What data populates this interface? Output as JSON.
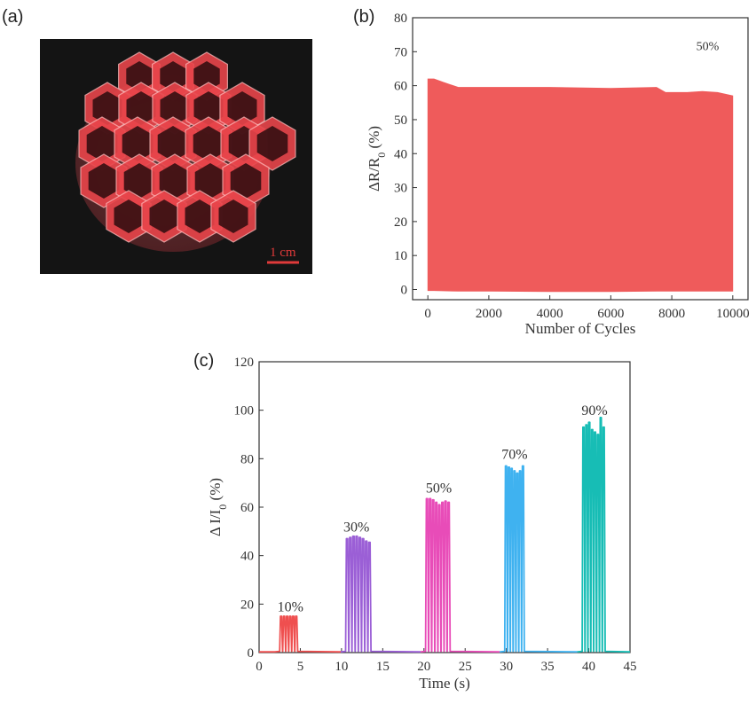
{
  "panels": {
    "a": "(a)",
    "b": "(b)",
    "c": "(c)"
  },
  "photo": {
    "scale_bar_label": "1 cm",
    "subject": "red 3D-printed hexagonal lattice"
  },
  "colors": {
    "b_fill": "#ef5b5b",
    "c_series": [
      "#ef4f4f",
      "#9b5fd6",
      "#e84cb8",
      "#3fb2f0",
      "#17bdb5"
    ],
    "photo_red": "#e8454a"
  },
  "chart_data": [
    {
      "type": "area",
      "xlabel": "Number of Cycles",
      "ylabel": "ΔR/R0 (%)",
      "xlim": [
        -500,
        10500
      ],
      "ylim": [
        -3,
        80
      ],
      "x_ticks": [
        0,
        2000,
        4000,
        6000,
        8000,
        10000
      ],
      "y_ticks": [
        0,
        10,
        20,
        30,
        40,
        50,
        60,
        70,
        80
      ],
      "annotation": "50%",
      "series": [
        {
          "x": [
            0,
            200,
            500,
            1000,
            2000,
            4000,
            6000,
            7500,
            7800,
            8500,
            9000,
            9500,
            10000
          ],
          "upper": [
            62,
            62,
            61,
            59.5,
            59.5,
            59.5,
            59.2,
            59.5,
            58,
            58,
            58.3,
            58,
            57
          ],
          "lower": [
            -0.3,
            -0.3,
            -0.4,
            -0.5,
            -0.5,
            -0.6,
            -0.6,
            -0.5,
            -0.5,
            -0.5,
            -0.5,
            -0.5,
            -0.5
          ]
        }
      ]
    },
    {
      "type": "line",
      "xlabel": "Time (s)",
      "ylabel": "Δ I/I0 (%)",
      "xlim": [
        0,
        45
      ],
      "ylim": [
        0,
        120
      ],
      "x_ticks": [
        0,
        5,
        10,
        15,
        20,
        25,
        30,
        35,
        40,
        45
      ],
      "y_ticks": [
        0,
        20,
        40,
        60,
        80,
        100,
        120
      ],
      "series": [
        {
          "label": "10%",
          "t_start": 2.5,
          "t_end": 4.7,
          "pulses": 6,
          "peaks": [
            15,
            15,
            15,
            15,
            15,
            15
          ],
          "label_at": [
            3.8,
            17
          ]
        },
        {
          "label": "30%",
          "t_start": 10.5,
          "t_end": 13.6,
          "pulses": 8,
          "peaks": [
            47,
            47.5,
            48,
            48,
            47.5,
            47,
            46,
            45.5
          ],
          "label_at": [
            11.8,
            50
          ]
        },
        {
          "label": "50%",
          "t_start": 20.2,
          "t_end": 23.2,
          "pulses": 8,
          "peaks": [
            63.5,
            63.5,
            63,
            62,
            61,
            62,
            62.5,
            62
          ],
          "label_at": [
            21.8,
            66
          ]
        },
        {
          "label": "70%",
          "t_start": 29.8,
          "t_end": 32.2,
          "pulses": 7,
          "peaks": [
            77,
            76.5,
            76,
            75,
            74,
            75,
            77
          ],
          "label_at": [
            31,
            80
          ]
        },
        {
          "label": "90%",
          "t_start": 39.2,
          "t_end": 42,
          "pulses": 8,
          "peaks": [
            93,
            94,
            95,
            92,
            91,
            90,
            97,
            93
          ],
          "label_at": [
            40.7,
            98
          ]
        }
      ]
    }
  ]
}
